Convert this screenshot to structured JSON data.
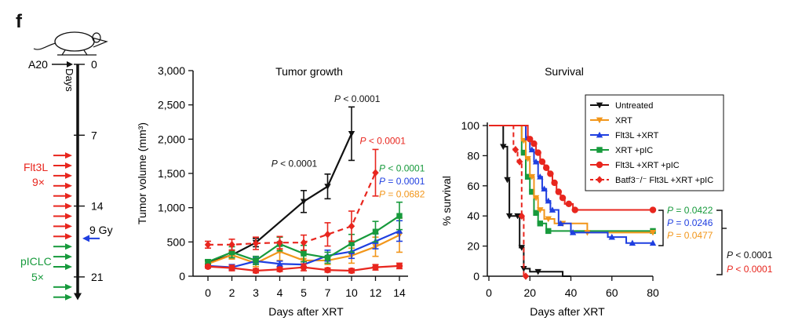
{
  "panel_label": "f",
  "colors": {
    "black": "#111111",
    "red": "#e8261e",
    "green": "#179a3c",
    "blue": "#1f3fe0",
    "orange": "#f2961a",
    "dashed_red": "#e8261e"
  },
  "schedule": {
    "icon": "mouse-icon",
    "inoculation_label": "A20",
    "axis_label": "Days",
    "ticks": [
      {
        "day": 0,
        "label": "0"
      },
      {
        "day": 7,
        "label": "7"
      },
      {
        "day": 14,
        "label": "14"
      },
      {
        "day": 21,
        "label": "21"
      }
    ],
    "flt3l": {
      "label": "Flt3L",
      "count": "9×",
      "color": "#e8261e",
      "days": [
        9,
        10,
        11,
        12,
        13,
        14,
        15,
        16,
        17
      ]
    },
    "xrt": {
      "label": "9 Gy",
      "day": 17.2,
      "color": "#1f3fe0"
    },
    "piclc": {
      "label": "pICLC",
      "count": "5×",
      "color": "#179a3c",
      "days": [
        18,
        19,
        20,
        22,
        23
      ]
    }
  },
  "chart_data": [
    {
      "type": "line",
      "title": "Tumor growth",
      "xlabel": "Days after XRT",
      "ylabel": "Tumor volume (mm³)",
      "x": [
        0,
        2,
        3,
        4,
        5,
        7,
        10,
        12,
        14
      ],
      "x_tick_labels": [
        "0",
        "2",
        "3",
        "4",
        "5",
        "7",
        "10",
        "12",
        "14"
      ],
      "ylim": [
        0,
        3000
      ],
      "y_ticks": [
        0,
        500,
        1000,
        1500,
        2000,
        2500,
        3000
      ],
      "y_tick_labels": [
        "0",
        "500",
        "1,000",
        "1,500",
        "2,000",
        "2,500",
        "3,000"
      ],
      "series": [
        {
          "key": "untreated",
          "color": "#111111",
          "dashed": false,
          "marker": "triangle-down",
          "values": [
            200,
            310,
            490,
            null,
            1090,
            1310,
            2080,
            null,
            null
          ],
          "errors": [
            30,
            40,
            60,
            null,
            160,
            180,
            390,
            null,
            null
          ]
        },
        {
          "key": "xrt",
          "color": "#f2961a",
          "dashed": false,
          "marker": "triangle-down",
          "values": [
            180,
            310,
            190,
            360,
            230,
            230,
            300,
            430,
            600
          ],
          "errors": [
            30,
            60,
            50,
            130,
            90,
            60,
            110,
            140,
            250
          ]
        },
        {
          "key": "flt3l_xrt",
          "color": "#1f3fe0",
          "dashed": false,
          "marker": "triangle-up",
          "values": [
            150,
            130,
            220,
            180,
            170,
            300,
            360,
            510,
            660
          ],
          "errors": [
            20,
            40,
            50,
            40,
            40,
            80,
            100,
            110,
            150
          ]
        },
        {
          "key": "xrt_pic",
          "color": "#179a3c",
          "dashed": false,
          "marker": "square",
          "values": [
            210,
            350,
            230,
            470,
            330,
            270,
            480,
            650,
            880
          ],
          "errors": [
            30,
            80,
            60,
            100,
            120,
            80,
            130,
            150,
            200
          ]
        },
        {
          "key": "flt3l_xrt_pic",
          "color": "#e8261e",
          "dashed": false,
          "marker": "circle",
          "values": [
            140,
            120,
            80,
            100,
            130,
            90,
            80,
            130,
            150
          ],
          "errors": [
            20,
            40,
            30,
            30,
            50,
            30,
            30,
            40,
            40
          ]
        },
        {
          "key": "batf3",
          "color": "#e8261e",
          "dashed": true,
          "marker": "diamond",
          "values": [
            460,
            460,
            480,
            490,
            490,
            610,
            730,
            1510,
            null
          ],
          "errors": [
            50,
            80,
            90,
            90,
            110,
            170,
            220,
            340,
            null
          ]
        }
      ],
      "annotations": [
        {
          "italic": "P",
          "text": " < 0.0001",
          "color": "#111111",
          "at_x": 10,
          "at_y": 2540
        },
        {
          "italic": "P",
          "text": " < 0.0001",
          "color": "#111111",
          "at_x": 5,
          "at_y": 1600
        },
        {
          "italic": "P",
          "text": " < 0.0001",
          "color": "#e8261e",
          "at_x": 12,
          "at_y": 1930
        },
        {
          "italic": "P",
          "text": " < 0.0001",
          "color": "#179a3c",
          "at_x": 14,
          "at_y": 1530
        },
        {
          "italic": "P",
          "text": " = 0.0001",
          "color": "#1f3fe0",
          "at_x": 14,
          "at_y": 1340
        },
        {
          "italic": "P",
          "text": " = 0.0682",
          "color": "#f2961a",
          "at_x": 14,
          "at_y": 1150
        }
      ]
    },
    {
      "type": "line",
      "title": "Survival",
      "xlabel": "Days after XRT",
      "ylabel": "% survival",
      "xlim": [
        0,
        80
      ],
      "x_ticks": [
        0,
        20,
        40,
        60,
        80
      ],
      "x_tick_labels": [
        "0",
        "20",
        "40",
        "60",
        "80"
      ],
      "ylim": [
        0,
        100
      ],
      "y_ticks": [
        0,
        20,
        40,
        60,
        80,
        100
      ],
      "y_tick_labels": [
        "0",
        "20",
        "40",
        "60",
        "80",
        "100"
      ],
      "legend_position": "top-right",
      "legend": [
        {
          "key": "untreated",
          "label": "Untreated",
          "color": "#111111",
          "marker": "triangle-down",
          "dashed": false
        },
        {
          "key": "xrt",
          "label": "XRT",
          "color": "#f2961a",
          "marker": "triangle-down",
          "dashed": false
        },
        {
          "key": "flt3l_xrt",
          "label": "Flt3L +XRT",
          "color": "#1f3fe0",
          "marker": "triangle-up",
          "dashed": false
        },
        {
          "key": "xrt_pic",
          "label": "XRT +pIC",
          "color": "#179a3c",
          "marker": "square",
          "dashed": false
        },
        {
          "key": "flt3l_xrt_pic",
          "label": "Flt3L +XRT +pIC",
          "color": "#e8261e",
          "marker": "circle",
          "dashed": false
        },
        {
          "key": "batf3",
          "label": "Batf3⁻/⁻ Flt3L +XRT +pIC",
          "color": "#e8261e",
          "marker": "diamond",
          "dashed": true
        }
      ],
      "series": [
        {
          "key": "untreated",
          "color": "#111111",
          "dashed": false,
          "marker": "triangle-down",
          "steps": [
            [
              0,
              100
            ],
            [
              7,
              100
            ],
            [
              7,
              86
            ],
            [
              9,
              86
            ],
            [
              9,
              64
            ],
            [
              10,
              64
            ],
            [
              10,
              40
            ],
            [
              15,
              40
            ],
            [
              15,
              19
            ],
            [
              17,
              19
            ],
            [
              17,
              5
            ],
            [
              20,
              5
            ],
            [
              20,
              3
            ],
            [
              36,
              3
            ],
            [
              36,
              0
            ],
            [
              40,
              0
            ]
          ],
          "markers": [
            [
              7,
              86
            ],
            [
              9,
              64
            ],
            [
              10,
              40
            ],
            [
              14,
              40
            ],
            [
              16,
              19
            ],
            [
              17,
              5
            ],
            [
              24,
              3
            ]
          ]
        },
        {
          "key": "xrt",
          "color": "#f2961a",
          "dashed": false,
          "marker": "triangle-down",
          "steps": [
            [
              0,
              100
            ],
            [
              16,
              100
            ],
            [
              16,
              90
            ],
            [
              18,
              90
            ],
            [
              18,
              78
            ],
            [
              20,
              78
            ],
            [
              20,
              66
            ],
            [
              22,
              66
            ],
            [
              22,
              52
            ],
            [
              24,
              52
            ],
            [
              24,
              44
            ],
            [
              27,
              44
            ],
            [
              27,
              38
            ],
            [
              32,
              38
            ],
            [
              32,
              35
            ],
            [
              48,
              35
            ],
            [
              48,
              29
            ],
            [
              80,
              29
            ]
          ],
          "markers": [
            [
              17,
              90
            ],
            [
              19,
              78
            ],
            [
              21,
              66
            ],
            [
              23,
              52
            ],
            [
              25,
              44
            ],
            [
              29,
              38
            ],
            [
              36,
              35
            ],
            [
              48,
              29
            ],
            [
              80,
              29
            ]
          ]
        },
        {
          "key": "flt3l_xrt",
          "color": "#1f3fe0",
          "dashed": false,
          "marker": "triangle-up",
          "steps": [
            [
              0,
              100
            ],
            [
              18,
              100
            ],
            [
              18,
              92
            ],
            [
              20,
              92
            ],
            [
              20,
              84
            ],
            [
              22,
              84
            ],
            [
              22,
              76
            ],
            [
              24,
              76
            ],
            [
              24,
              66
            ],
            [
              26,
              66
            ],
            [
              26,
              58
            ],
            [
              28,
              58
            ],
            [
              28,
              50
            ],
            [
              30,
              50
            ],
            [
              30,
              44
            ],
            [
              34,
              44
            ],
            [
              34,
              35
            ],
            [
              40,
              35
            ],
            [
              40,
              29
            ],
            [
              58,
              29
            ],
            [
              58,
              26
            ],
            [
              67,
              26
            ],
            [
              67,
              22
            ],
            [
              80,
              22
            ]
          ],
          "markers": [
            [
              19,
              92
            ],
            [
              21,
              84
            ],
            [
              23,
              76
            ],
            [
              25,
              66
            ],
            [
              27,
              58
            ],
            [
              29,
              50
            ],
            [
              31,
              44
            ],
            [
              35,
              35
            ],
            [
              41,
              29
            ],
            [
              60,
              26
            ],
            [
              70,
              22
            ],
            [
              80,
              22
            ]
          ]
        },
        {
          "key": "xrt_pic",
          "color": "#179a3c",
          "dashed": false,
          "marker": "square",
          "steps": [
            [
              0,
              100
            ],
            [
              16,
              100
            ],
            [
              16,
              82
            ],
            [
              18,
              82
            ],
            [
              18,
              66
            ],
            [
              20,
              66
            ],
            [
              20,
              56
            ],
            [
              22,
              56
            ],
            [
              22,
              42
            ],
            [
              24,
              42
            ],
            [
              24,
              35
            ],
            [
              28,
              35
            ],
            [
              28,
              30
            ],
            [
              80,
              30
            ]
          ],
          "markers": [
            [
              17,
              82
            ],
            [
              19,
              66
            ],
            [
              21,
              56
            ],
            [
              23,
              42
            ],
            [
              25,
              35
            ],
            [
              29,
              30
            ],
            [
              80,
              30
            ]
          ]
        },
        {
          "key": "flt3l_xrt_pic",
          "color": "#e8261e",
          "dashed": false,
          "marker": "circle",
          "steps": [
            [
              0,
              100
            ],
            [
              19,
              100
            ],
            [
              19,
              91
            ],
            [
              21,
              91
            ],
            [
              21,
              88
            ],
            [
              23,
              88
            ],
            [
              23,
              82
            ],
            [
              25,
              82
            ],
            [
              25,
              76
            ],
            [
              27,
              76
            ],
            [
              27,
              72
            ],
            [
              29,
              72
            ],
            [
              29,
              68
            ],
            [
              31,
              68
            ],
            [
              31,
              62
            ],
            [
              33,
              62
            ],
            [
              33,
              56
            ],
            [
              35,
              56
            ],
            [
              35,
              52
            ],
            [
              37,
              52
            ],
            [
              37,
              48
            ],
            [
              41,
              48
            ],
            [
              41,
              44
            ],
            [
              80,
              44
            ]
          ],
          "markers": [
            [
              20,
              91
            ],
            [
              22,
              88
            ],
            [
              24,
              82
            ],
            [
              26,
              76
            ],
            [
              28,
              72
            ],
            [
              30,
              68
            ],
            [
              32,
              62
            ],
            [
              34,
              56
            ],
            [
              36,
              52
            ],
            [
              39,
              48
            ],
            [
              42,
              44
            ],
            [
              80,
              44
            ]
          ]
        },
        {
          "key": "batf3",
          "color": "#e8261e",
          "dashed": true,
          "marker": "diamond",
          "steps": [
            [
              0,
              100
            ],
            [
              12,
              100
            ],
            [
              12,
              84
            ],
            [
              14,
              84
            ],
            [
              14,
              76
            ],
            [
              16,
              76
            ],
            [
              16,
              40
            ],
            [
              17,
              40
            ],
            [
              17,
              0
            ],
            [
              19,
              0
            ]
          ],
          "markers": [
            [
              13,
              84
            ],
            [
              15,
              76
            ],
            [
              16,
              40
            ],
            [
              18,
              0
            ]
          ]
        }
      ],
      "annotations": [
        {
          "italic": "P",
          "text": " = 0.0422",
          "color": "#179a3c",
          "row": 0
        },
        {
          "italic": "P",
          "text": " = 0.0246",
          "color": "#1f3fe0",
          "row": 1
        },
        {
          "italic": "P",
          "text": " = 0.0477",
          "color": "#f2961a",
          "row": 2
        },
        {
          "italic": "P",
          "text": " < 0.0001",
          "color": "#111111",
          "row": 3
        },
        {
          "italic": "P",
          "text": " < 0.0001",
          "color": "#e8261e",
          "row": 4
        }
      ]
    }
  ]
}
